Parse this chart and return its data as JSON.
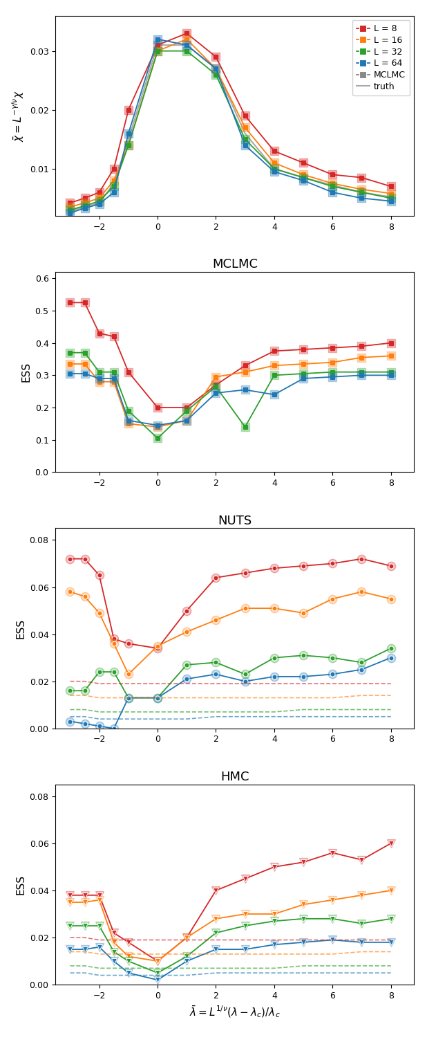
{
  "x": [
    -3,
    -2.5,
    -2,
    -1.5,
    -1,
    0,
    1,
    2,
    3,
    4,
    5,
    6,
    7,
    8
  ],
  "colors": {
    "L8": "#d62728",
    "L16": "#ff7f0e",
    "L32": "#2ca02c",
    "L64": "#1f77b4",
    "MCLMC": "#888888"
  },
  "panel1": {
    "ylabel": "$\\bar{\\chi} = L^{-\\gamma/\\nu}\\chi$",
    "yticks": [
      0.01,
      0.02,
      0.03
    ],
    "L8": [
      0.0042,
      0.005,
      0.006,
      0.01,
      0.02,
      0.031,
      0.033,
      0.029,
      0.019,
      0.013,
      0.011,
      0.009,
      0.0085,
      0.007
    ],
    "L16": [
      0.0035,
      0.0042,
      0.005,
      0.008,
      0.014,
      0.03,
      0.032,
      0.027,
      0.017,
      0.011,
      0.009,
      0.0075,
      0.0065,
      0.0058
    ],
    "L32": [
      0.003,
      0.0037,
      0.0045,
      0.007,
      0.014,
      0.03,
      0.03,
      0.026,
      0.015,
      0.01,
      0.0085,
      0.007,
      0.006,
      0.005
    ],
    "L64": [
      0.0025,
      0.0033,
      0.004,
      0.006,
      0.016,
      0.032,
      0.031,
      0.027,
      0.014,
      0.0095,
      0.008,
      0.006,
      0.005,
      0.0045
    ],
    "truth": [
      0.0028,
      0.0035,
      0.0042,
      0.0075,
      0.015,
      0.031,
      0.031,
      0.027,
      0.016,
      0.01,
      0.0085,
      0.0072,
      0.006,
      0.0052
    ]
  },
  "panel2": {
    "title": "MCLMC",
    "ylabel": "ESS",
    "ylim": [
      0.0,
      0.62
    ],
    "yticks": [
      0.0,
      0.1,
      0.2,
      0.3,
      0.4,
      0.5,
      0.6
    ],
    "L8": [
      0.525,
      0.525,
      0.43,
      0.42,
      0.31,
      0.2,
      0.2,
      0.27,
      0.33,
      0.375,
      0.38,
      0.385,
      0.39,
      0.4
    ],
    "L16": [
      0.335,
      0.335,
      0.28,
      0.28,
      0.15,
      0.14,
      0.16,
      0.295,
      0.31,
      0.33,
      0.335,
      0.34,
      0.355,
      0.36
    ],
    "L32": [
      0.37,
      0.37,
      0.31,
      0.31,
      0.19,
      0.105,
      0.19,
      0.265,
      0.14,
      0.3,
      0.305,
      0.31,
      0.31,
      0.31
    ],
    "L64": [
      0.305,
      0.305,
      0.29,
      0.29,
      0.16,
      0.145,
      0.16,
      0.245,
      0.255,
      0.24,
      0.29,
      0.295,
      0.3,
      0.3
    ]
  },
  "panel3": {
    "title": "NUTS",
    "ylabel": "ESS",
    "ylim": [
      0.0,
      0.085
    ],
    "yticks": [
      0.0,
      0.02,
      0.04,
      0.06,
      0.08
    ],
    "L8": [
      0.072,
      0.072,
      0.065,
      0.038,
      0.036,
      0.034,
      0.05,
      0.064,
      0.066,
      0.068,
      0.069,
      0.07,
      0.072,
      0.069
    ],
    "L16": [
      0.058,
      0.056,
      0.049,
      0.036,
      0.023,
      0.035,
      0.041,
      0.046,
      0.051,
      0.051,
      0.049,
      0.055,
      0.058,
      0.055
    ],
    "L32": [
      0.016,
      0.016,
      0.024,
      0.024,
      0.013,
      0.013,
      0.027,
      0.028,
      0.023,
      0.03,
      0.031,
      0.03,
      0.028,
      0.034
    ],
    "L64": [
      0.003,
      0.002,
      0.001,
      0.0,
      0.013,
      0.013,
      0.021,
      0.023,
      0.02,
      0.022,
      0.022,
      0.023,
      0.025,
      0.03
    ],
    "L8_d": [
      0.02,
      0.02,
      0.019,
      0.019,
      0.019,
      0.019,
      0.019,
      0.019,
      0.019,
      0.019,
      0.019,
      0.019,
      0.019,
      0.019
    ],
    "L16_d": [
      0.014,
      0.014,
      0.013,
      0.013,
      0.013,
      0.013,
      0.013,
      0.013,
      0.013,
      0.013,
      0.013,
      0.013,
      0.014,
      0.014
    ],
    "L32_d": [
      0.008,
      0.008,
      0.007,
      0.007,
      0.007,
      0.007,
      0.007,
      0.007,
      0.007,
      0.007,
      0.008,
      0.008,
      0.008,
      0.008
    ],
    "L64_d": [
      0.005,
      0.005,
      0.004,
      0.004,
      0.004,
      0.004,
      0.004,
      0.005,
      0.005,
      0.005,
      0.005,
      0.005,
      0.005,
      0.005
    ]
  },
  "panel4": {
    "title": "HMC",
    "ylabel": "ESS",
    "ylim": [
      0.0,
      0.085
    ],
    "yticks": [
      0.0,
      0.02,
      0.04,
      0.06,
      0.08
    ],
    "L8": [
      0.038,
      0.038,
      0.038,
      0.022,
      0.018,
      0.01,
      0.02,
      0.04,
      0.045,
      0.05,
      0.052,
      0.056,
      0.053,
      0.06
    ],
    "L16": [
      0.035,
      0.035,
      0.036,
      0.018,
      0.012,
      0.01,
      0.02,
      0.028,
      0.03,
      0.03,
      0.034,
      0.036,
      0.038,
      0.04
    ],
    "L32": [
      0.025,
      0.025,
      0.025,
      0.014,
      0.01,
      0.005,
      0.012,
      0.022,
      0.025,
      0.027,
      0.028,
      0.028,
      0.026,
      0.028
    ],
    "L64": [
      0.015,
      0.015,
      0.016,
      0.01,
      0.005,
      0.002,
      0.01,
      0.015,
      0.015,
      0.017,
      0.018,
      0.019,
      0.018,
      0.018
    ],
    "L8_d": [
      0.02,
      0.02,
      0.019,
      0.019,
      0.019,
      0.019,
      0.019,
      0.019,
      0.019,
      0.019,
      0.019,
      0.019,
      0.019,
      0.019
    ],
    "L16_d": [
      0.014,
      0.014,
      0.013,
      0.013,
      0.013,
      0.013,
      0.013,
      0.013,
      0.013,
      0.013,
      0.013,
      0.013,
      0.014,
      0.014
    ],
    "L32_d": [
      0.008,
      0.008,
      0.007,
      0.007,
      0.007,
      0.007,
      0.007,
      0.007,
      0.007,
      0.007,
      0.008,
      0.008,
      0.008,
      0.008
    ],
    "L64_d": [
      0.005,
      0.005,
      0.004,
      0.004,
      0.004,
      0.004,
      0.004,
      0.005,
      0.005,
      0.005,
      0.005,
      0.005,
      0.005,
      0.005
    ]
  },
  "xlabel": "$\\bar{\\lambda} = L^{1/\\nu}(\\lambda - \\lambda_c)/\\lambda_c$"
}
